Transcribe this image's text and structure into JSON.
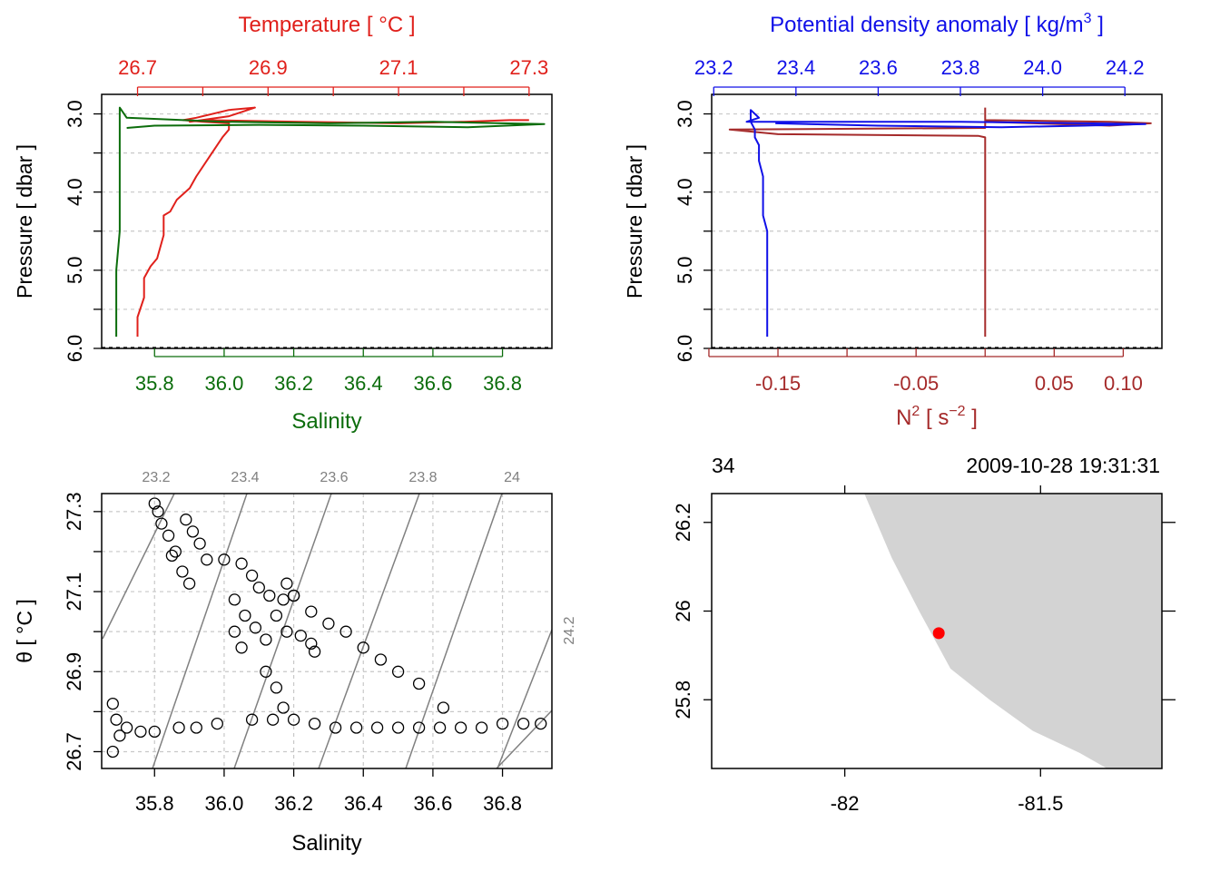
{
  "chart_data": [
    {
      "type": "line",
      "panel": "temperature-salinity-profile",
      "top_axis_label": "Temperature [ °C ]",
      "bottom_axis_label": "Salinity",
      "ylabel": "Pressure [ dbar ]",
      "ylim": [
        6.0,
        2.75
      ],
      "y_ticks": [
        3.0,
        3.5,
        4.0,
        4.5,
        5.0,
        5.5,
        6.0
      ],
      "y_tick_labels": [
        "3.0",
        "4.0",
        "5.0",
        "6.0"
      ],
      "temperature_xlim": [
        26.645,
        27.335
      ],
      "temperature_ticks": [
        "26.7",
        "26.9",
        "27.1",
        "27.3"
      ],
      "salinity_xlim": [
        35.648,
        36.942
      ],
      "salinity_ticks": [
        "35.8",
        "36.0",
        "36.2",
        "36.4",
        "36.6",
        "36.8"
      ],
      "series": [
        {
          "name": "Temperature",
          "color": "#e0201b",
          "x": [
            26.7,
            26.7,
            26.71,
            26.71,
            26.72,
            26.73,
            26.74,
            26.74,
            26.75,
            26.76,
            26.78,
            26.79,
            26.81,
            26.83,
            26.84,
            26.84,
            26.8,
            26.77,
            26.79,
            26.84,
            26.88,
            26.84,
            26.78,
            26.8,
            26.95,
            27.1,
            27.2,
            27.27,
            27.3
          ],
          "y": [
            5.85,
            5.6,
            5.35,
            5.1,
            4.95,
            4.85,
            4.55,
            4.3,
            4.25,
            4.1,
            3.95,
            3.8,
            3.55,
            3.3,
            3.2,
            3.12,
            3.1,
            3.08,
            3.05,
            2.95,
            2.92,
            3.03,
            3.1,
            3.08,
            3.1,
            3.12,
            3.1,
            3.08,
            3.08
          ]
        },
        {
          "name": "Salinity",
          "color": "#0c6d0c",
          "x": [
            35.69,
            35.69,
            35.69,
            35.7,
            35.7,
            35.7,
            35.7,
            35.7,
            35.7,
            35.7,
            35.72,
            36.0,
            36.3,
            36.6,
            36.8,
            36.92,
            36.7,
            36.4,
            36.1,
            35.8,
            35.72
          ],
          "y": [
            5.85,
            5.5,
            5.0,
            4.5,
            4.0,
            3.6,
            3.3,
            3.2,
            3.05,
            2.92,
            3.05,
            3.1,
            3.12,
            3.1,
            3.12,
            3.13,
            3.17,
            3.15,
            3.14,
            3.15,
            3.18
          ]
        }
      ]
    },
    {
      "type": "line",
      "panel": "density-n2-profile",
      "top_axis_label": "Potential density anomaly [ kg/m",
      "top_axis_label_sup": "3",
      "top_axis_label_end": " ]",
      "bottom_axis_label": "N",
      "bottom_axis_label_sup": "2",
      "bottom_axis_label_mid": " [ s",
      "bottom_axis_label_sup2": "−2",
      "bottom_axis_label_end": " ]",
      "ylabel": "Pressure [ dbar ]",
      "ylim": [
        6.0,
        2.75
      ],
      "y_tick_labels": [
        "3.0",
        "4.0",
        "5.0",
        "6.0"
      ],
      "density_xlim": [
        23.195,
        24.29
      ],
      "density_ticks": [
        "23.2",
        "23.4",
        "23.6",
        "23.8",
        "24.0",
        "24.2"
      ],
      "n2_xlim": [
        -0.198,
        0.128
      ],
      "n2_ticks": [
        "-0.15",
        "-0.05",
        "0.05",
        "0.10"
      ],
      "series": [
        {
          "name": "Potential density anomaly",
          "color": "#1010e8",
          "x": [
            23.33,
            23.33,
            23.33,
            23.33,
            23.32,
            23.32,
            23.32,
            23.31,
            23.31,
            23.3,
            23.3,
            23.29,
            23.29,
            23.31,
            23.28,
            23.5,
            23.8,
            24.1,
            24.25,
            24.1,
            23.9,
            23.6,
            23.35
          ],
          "y": [
            5.85,
            5.5,
            5.0,
            4.5,
            4.3,
            4.0,
            3.8,
            3.6,
            3.4,
            3.3,
            3.2,
            3.1,
            2.95,
            3.05,
            3.1,
            3.1,
            3.1,
            3.12,
            3.13,
            3.15,
            3.17,
            3.15,
            3.12
          ]
        },
        {
          "name": "N2",
          "color": "#a52a2a",
          "x": [
            0.0,
            0.0,
            0.0,
            0.0,
            0.0,
            0.0,
            -0.005,
            -0.15,
            -0.185,
            0.0,
            0.0,
            0.09,
            0.12,
            0.09,
            0.0,
            0.0
          ],
          "y": [
            5.85,
            5.0,
            4.0,
            3.6,
            3.35,
            3.3,
            3.28,
            3.26,
            3.2,
            3.18,
            3.08,
            3.1,
            3.12,
            3.15,
            3.1,
            2.92
          ]
        }
      ]
    },
    {
      "type": "scatter",
      "panel": "ts-diagram",
      "xlabel": "Salinity",
      "ylabel": "θ [ °C ]",
      "xlim": [
        35.648,
        36.942
      ],
      "ylim": [
        26.658,
        27.345
      ],
      "x_ticks": [
        "35.8",
        "36.0",
        "36.2",
        "36.4",
        "36.6",
        "36.8"
      ],
      "y_ticks": [
        "26.7",
        "26.9",
        "27.1",
        "27.3"
      ],
      "isopycnal_labels": [
        "23.2",
        "23.4",
        "23.6",
        "23.8",
        "24",
        "24.2"
      ],
      "points": [
        [
          35.8,
          27.32
        ],
        [
          35.81,
          27.3
        ],
        [
          35.82,
          27.27
        ],
        [
          35.84,
          27.24
        ],
        [
          35.86,
          27.2
        ],
        [
          35.89,
          27.28
        ],
        [
          35.91,
          27.25
        ],
        [
          35.93,
          27.22
        ],
        [
          35.85,
          27.19
        ],
        [
          35.88,
          27.15
        ],
        [
          35.9,
          27.12
        ],
        [
          35.95,
          27.18
        ],
        [
          36.0,
          27.18
        ],
        [
          36.05,
          27.17
        ],
        [
          36.08,
          27.14
        ],
        [
          36.1,
          27.11
        ],
        [
          36.13,
          27.09
        ],
        [
          36.17,
          27.08
        ],
        [
          36.2,
          27.09
        ],
        [
          36.03,
          27.08
        ],
        [
          36.06,
          27.04
        ],
        [
          36.09,
          27.01
        ],
        [
          36.12,
          26.98
        ],
        [
          36.03,
          27.0
        ],
        [
          36.05,
          26.96
        ],
        [
          36.15,
          27.04
        ],
        [
          36.18,
          27.0
        ],
        [
          36.22,
          26.99
        ],
        [
          36.25,
          26.97
        ],
        [
          36.26,
          26.95
        ],
        [
          36.18,
          27.12
        ],
        [
          36.2,
          27.09
        ],
        [
          36.25,
          27.05
        ],
        [
          36.3,
          27.02
        ],
        [
          36.35,
          27.0
        ],
        [
          36.4,
          26.96
        ],
        [
          36.45,
          26.93
        ],
        [
          36.5,
          26.9
        ],
        [
          36.56,
          26.87
        ],
        [
          36.63,
          26.81
        ],
        [
          36.12,
          26.9
        ],
        [
          36.15,
          26.86
        ],
        [
          36.17,
          26.81
        ],
        [
          35.68,
          26.82
        ],
        [
          35.69,
          26.78
        ],
        [
          35.7,
          26.74
        ],
        [
          35.68,
          26.7
        ],
        [
          35.72,
          26.76
        ],
        [
          35.76,
          26.75
        ],
        [
          35.8,
          26.75
        ],
        [
          35.87,
          26.76
        ],
        [
          35.92,
          26.76
        ],
        [
          35.98,
          26.77
        ],
        [
          36.08,
          26.78
        ],
        [
          36.14,
          26.78
        ],
        [
          36.2,
          26.78
        ],
        [
          36.26,
          26.77
        ],
        [
          36.32,
          26.76
        ],
        [
          36.38,
          26.76
        ],
        [
          36.44,
          26.76
        ],
        [
          36.5,
          26.76
        ],
        [
          36.56,
          26.76
        ],
        [
          36.62,
          26.76
        ],
        [
          36.68,
          26.76
        ],
        [
          36.74,
          26.76
        ],
        [
          36.8,
          26.77
        ],
        [
          36.86,
          26.77
        ],
        [
          36.91,
          26.77
        ]
      ]
    },
    {
      "type": "map",
      "panel": "station-map",
      "top_left_label": "34",
      "top_right_label": "2009-10-28 19:31:31",
      "x_ticks": [
        "-82",
        "-81.5"
      ],
      "y_ticks": [
        "25.8",
        "26",
        "26.2"
      ],
      "xlim": [
        -82.34,
        -81.19
      ],
      "ylim": [
        25.645,
        26.265
      ],
      "land_color": "#d3d3d3",
      "station_color": "#ff0000",
      "station": {
        "lon": -81.76,
        "lat": 25.95
      },
      "coastline": [
        [
          -81.95,
          26.265
        ],
        [
          -81.88,
          26.12
        ],
        [
          -81.81,
          26.0
        ],
        [
          -81.73,
          25.87
        ],
        [
          -81.63,
          25.8
        ],
        [
          -81.52,
          25.73
        ],
        [
          -81.4,
          25.68
        ],
        [
          -81.33,
          25.645
        ]
      ]
    }
  ]
}
